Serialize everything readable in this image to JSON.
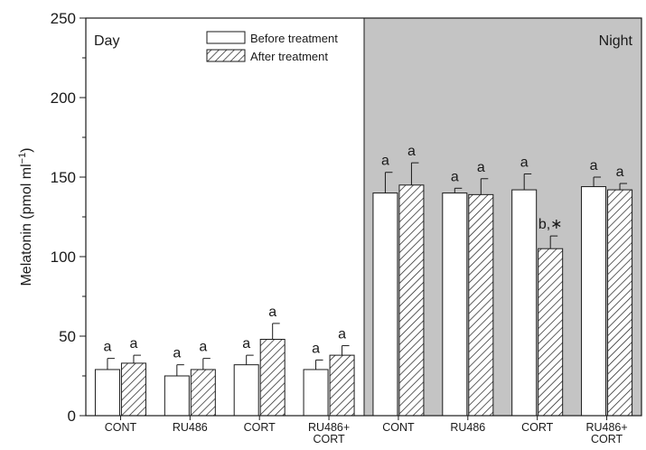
{
  "chart_data": {
    "type": "bar",
    "ylabel": "Melatonin (pmol ml",
    "ylabel_sup": "−1",
    "ylabel_end": ")",
    "ylim": [
      0,
      250
    ],
    "yticks": [
      0,
      50,
      100,
      150,
      200,
      250
    ],
    "categories": [
      "CONT",
      "RU486",
      "CORT",
      "RU486+\nCORT",
      "CONT",
      "RU486",
      "CORT",
      "RU486+\nCORT"
    ],
    "panels": [
      {
        "label": "Day",
        "shaded": false,
        "categories": [
          0,
          1,
          2,
          3
        ],
        "label_align": "left"
      },
      {
        "label": "Night",
        "shaded": true,
        "categories": [
          4,
          5,
          6,
          7
        ],
        "label_align": "right"
      }
    ],
    "series": [
      {
        "name": "Before treatment",
        "pattern": "open",
        "values": [
          29,
          25,
          32,
          29,
          140,
          140,
          142,
          144
        ],
        "errors": [
          7,
          7,
          6,
          6,
          13,
          3,
          10,
          6
        ],
        "labels": [
          "a",
          "a",
          "a",
          "a",
          "a",
          "a",
          "a",
          "a"
        ]
      },
      {
        "name": "After treatment",
        "pattern": "hatched",
        "values": [
          33,
          29,
          48,
          38,
          145,
          139,
          105,
          142
        ],
        "errors": [
          5,
          7,
          10,
          6,
          14,
          10,
          8,
          4
        ],
        "labels": [
          "a",
          "a",
          "a",
          "a",
          "a",
          "a",
          "b,∗",
          "a"
        ]
      }
    ],
    "legend": {
      "position": "top-center",
      "entries": [
        "Before treatment",
        "After treatment"
      ]
    },
    "grid": false
  }
}
